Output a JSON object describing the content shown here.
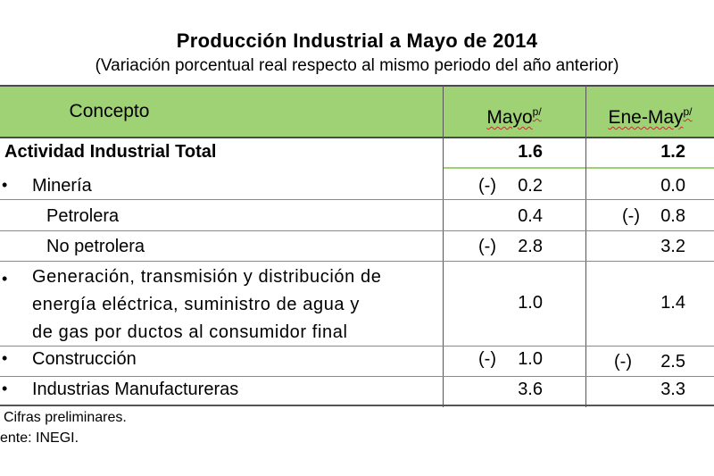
{
  "title": "Producción Industrial a Mayo de 2014",
  "subtitle": "(Variación porcentual real respecto al mismo periodo del año anterior)",
  "headers": {
    "concepto": "Concepto",
    "col1": "Mayo",
    "col1_sup": "p/",
    "col2": "Ene-May",
    "col2_sup": "p/"
  },
  "rows": [
    {
      "label": "Actividad Industrial Total",
      "v1": "1.6",
      "v1_neg": "",
      "v2": "1.2",
      "v2_neg": ""
    },
    {
      "bullet": "•",
      "label": "Minería",
      "v1": "0.2",
      "v1_neg": "(-)",
      "v2": "0.0",
      "v2_neg": ""
    },
    {
      "label": "Petrolera",
      "v1": "0.4",
      "v1_neg": "",
      "v2": "0.8",
      "v2_neg": "(-)"
    },
    {
      "label": "No petrolera",
      "v1": "2.8",
      "v1_neg": "(-)",
      "v2": "3.2",
      "v2_neg": ""
    },
    {
      "bullet": "•",
      "label_lines": [
        "Generación, transmisión y distribución de",
        "energía eléctrica, suministro de agua y",
        "de gas por ductos al consumidor final"
      ],
      "v1": "1.0",
      "v1_neg": "",
      "v2": "1.4",
      "v2_neg": ""
    },
    {
      "bullet": "•",
      "label": "Construcción",
      "v1": "1.0",
      "v1_neg": "(-)",
      "v2": "2.5",
      "v2_neg": "(-)"
    },
    {
      "bullet": "•",
      "label": "Industrias Manufactureras",
      "v1": "3.6",
      "v1_neg": "",
      "v2": "3.3",
      "v2_neg": ""
    }
  ],
  "footnotes": {
    "note1": "Cifras preliminares.",
    "note2": "ente: INEGI."
  }
}
